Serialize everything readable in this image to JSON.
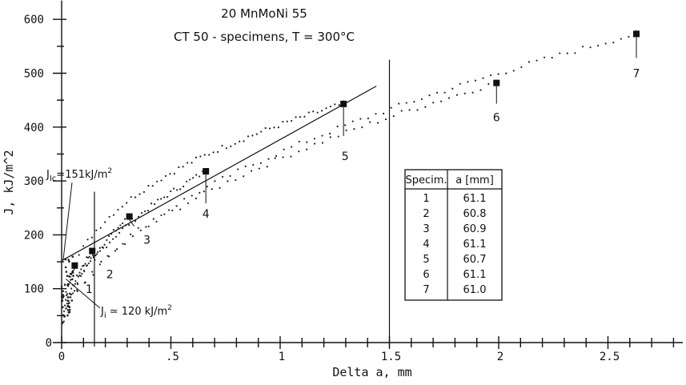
{
  "chart_data": {
    "type": "scatter",
    "title": "20 MnMoNi 55",
    "subtitle": "CT 50 - specimens, T = 300°C",
    "xlabel": "Delta a, mm",
    "ylabel": "J, kJ/m^2",
    "xlim": [
      0,
      2.85
    ],
    "ylim": [
      0,
      620
    ],
    "xticks": [
      {
        "value": 0,
        "label": "0"
      },
      {
        "value": 0.5,
        "label": ".5"
      },
      {
        "value": 1,
        "label": "1"
      },
      {
        "value": 1.5,
        "label": "1.5"
      },
      {
        "value": 2,
        "label": "2"
      },
      {
        "value": 2.5,
        "label": "2.5"
      }
    ],
    "yticks": [
      {
        "value": 0,
        "label": "0"
      },
      {
        "value": 100,
        "label": "100"
      },
      {
        "value": 200,
        "label": "200"
      },
      {
        "value": 300,
        "label": "300"
      },
      {
        "value": 400,
        "label": "400"
      },
      {
        "value": 500,
        "label": "500"
      },
      {
        "value": 600,
        "label": "600"
      }
    ],
    "end_points": [
      {
        "label": "1",
        "x": 0.06,
        "y": 143
      },
      {
        "label": "2",
        "x": 0.14,
        "y": 170
      },
      {
        "label": "3",
        "x": 0.31,
        "y": 234
      },
      {
        "label": "4",
        "x": 0.66,
        "y": 318
      },
      {
        "label": "5",
        "x": 1.29,
        "y": 443
      },
      {
        "label": "6",
        "x": 1.99,
        "y": 482
      },
      {
        "label": "7",
        "x": 2.63,
        "y": 573
      }
    ],
    "fit_line": {
      "x": [
        0.0,
        1.44
      ],
      "y": [
        152,
        476
      ]
    },
    "vertical_lines": [
      0.15,
      1.5
    ],
    "annotations": {
      "jic": "J",
      "jic_sub": "Ic",
      "jic_val": "=151kJ/m",
      "jic_sup": "2",
      "ji": "J",
      "ji_sub": "i",
      "ji_val": " ≃ 120 kJ/m",
      "ji_sup": "2"
    },
    "table": {
      "headers": [
        "Specim.",
        "a [mm]"
      ],
      "rows": [
        [
          "1",
          "61.1"
        ],
        [
          "2",
          "60.8"
        ],
        [
          "3",
          "60.9"
        ],
        [
          "4",
          "61.1"
        ],
        [
          "5",
          "60.7"
        ],
        [
          "6",
          "61.1"
        ],
        [
          "7",
          "61.0"
        ]
      ]
    }
  }
}
